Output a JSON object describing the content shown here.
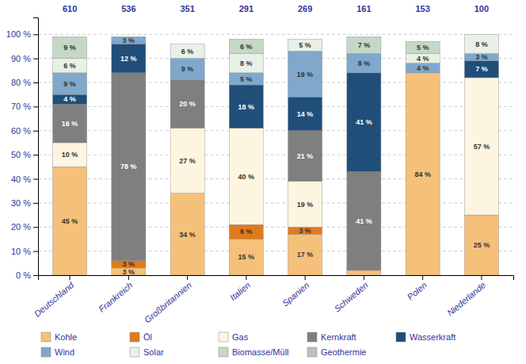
{
  "chart_data": {
    "type": "bar",
    "stacked": true,
    "grid": true,
    "legend": "bottom",
    "data_labels": true,
    "categories": [
      "Deutschland",
      "Frankreich",
      "Großbritannien",
      "Italien",
      "Spanien",
      "Schweden",
      "Polen",
      "Niederlande"
    ],
    "totals": [
      610,
      536,
      351,
      291,
      269,
      161,
      153,
      100
    ],
    "ylim": [
      0,
      107
    ],
    "yticks": [
      {
        "value": 0,
        "label": "0 %"
      },
      {
        "value": 10,
        "label": "10 %"
      },
      {
        "value": 20,
        "label": "20 %"
      },
      {
        "value": 30,
        "label": "30 %"
      },
      {
        "value": 40,
        "label": "40 %"
      },
      {
        "value": 50,
        "label": "50 %"
      },
      {
        "value": 60,
        "label": "60 %"
      },
      {
        "value": 70,
        "label": "70 %"
      },
      {
        "value": 80,
        "label": "80 %"
      },
      {
        "value": 90,
        "label": "90 %"
      },
      {
        "value": 100,
        "label": "100 %"
      }
    ],
    "series": [
      {
        "name": "Kohle",
        "color": "#F5C07A",
        "values": [
          45,
          3,
          34,
          15,
          17,
          2,
          84,
          25
        ],
        "value_labels": [
          "45 %",
          "3 %",
          "34 %",
          "15 %",
          "17 %",
          null,
          "84 %",
          "25 %"
        ]
      },
      {
        "name": "Öl",
        "color": "#E07B1A",
        "values": [
          0,
          3,
          0,
          6,
          3,
          0,
          0,
          0
        ],
        "value_labels": [
          null,
          "3 %",
          null,
          "6 %",
          "3 %",
          null,
          null,
          null
        ]
      },
      {
        "name": "Gas",
        "color": "#FDF5E0",
        "values": [
          10,
          0,
          27,
          40,
          19,
          0,
          0,
          57
        ],
        "value_labels": [
          "10 %",
          null,
          "27 %",
          "40 %",
          "19 %",
          null,
          null,
          "57 %"
        ]
      },
      {
        "name": "Kernkraft",
        "color": "#7F7F7F",
        "values": [
          16,
          78,
          20,
          0,
          21,
          41,
          0,
          0
        ],
        "value_labels": [
          "16 %",
          "78 %",
          "20 %",
          null,
          "21 %",
          "41 %",
          null,
          null
        ]
      },
      {
        "name": "Wasserkraft",
        "color": "#1F4E79",
        "values": [
          4,
          12,
          0,
          18,
          14,
          41,
          0,
          7
        ],
        "value_labels": [
          "4 %",
          "12 %",
          null,
          "18 %",
          "14 %",
          "41 %",
          null,
          "7 %"
        ]
      },
      {
        "name": "Wind",
        "color": "#7FA8CC",
        "values": [
          9,
          3,
          9,
          5,
          19,
          8,
          4,
          3
        ],
        "value_labels": [
          "9 %",
          "3 %",
          "9 %",
          "5 %",
          "19 %",
          "8 %",
          "4 %",
          "3 %"
        ]
      },
      {
        "name": "Solar",
        "color": "#E8F0E8",
        "values": [
          6,
          0,
          6,
          8,
          5,
          0,
          4,
          8
        ],
        "value_labels": [
          "6 %",
          null,
          "6 %",
          "8 %",
          "5 %",
          null,
          "4 %",
          "8 %"
        ]
      },
      {
        "name": "Biomasse/Müll",
        "color": "#C5D8C5",
        "values": [
          9,
          0,
          0,
          6,
          0,
          7,
          5,
          0
        ],
        "value_labels": [
          "9 %",
          null,
          null,
          "6 %",
          null,
          "7 %",
          "5 %",
          null
        ]
      },
      {
        "name": "Geothermie",
        "color": "#BEBEBE",
        "values": [
          0,
          0,
          0,
          0,
          0,
          0,
          0,
          0
        ],
        "value_labels": [
          null,
          null,
          null,
          null,
          null,
          null,
          null,
          null
        ]
      }
    ]
  }
}
